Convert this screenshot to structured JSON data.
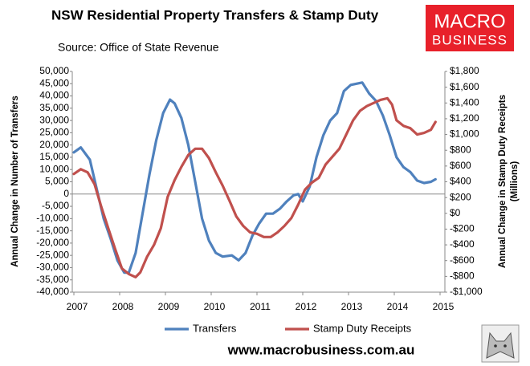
{
  "chart_data": {
    "type": "line",
    "title": "NSW Residential Property Transfers & Stamp Duty",
    "subtitle": "Source: Office of State Revenue",
    "logo": {
      "line1": "MACRO",
      "line2": "BUSINESS"
    },
    "website": "www.macrobusiness.com.au",
    "ylabel": "Annual Change in Number of Transfers",
    "y2label": [
      "Annual Change in Stamp Duty Receipts",
      "(Millions)"
    ],
    "xlim": [
      2007,
      2015
    ],
    "xticks": [
      2007,
      2008,
      2009,
      2010,
      2011,
      2012,
      2013,
      2014,
      2015
    ],
    "ylim": [
      -40000,
      50000
    ],
    "yticks": [
      {
        "value": -40000,
        "label": "-40,000"
      },
      {
        "value": -35000,
        "label": "-35,000"
      },
      {
        "value": -30000,
        "label": "-30,000"
      },
      {
        "value": -25000,
        "label": "-25,000"
      },
      {
        "value": -20000,
        "label": "-20,000"
      },
      {
        "value": -15000,
        "label": "-15,000"
      },
      {
        "value": -10000,
        "label": "-10,000"
      },
      {
        "value": -5000,
        "label": "-5,000"
      },
      0,
      {
        "value": 5000,
        "label": "5,000"
      },
      {
        "value": 10000,
        "label": "10,000"
      },
      {
        "value": 15000,
        "label": "15,000"
      },
      {
        "value": 20000,
        "label": "20,000"
      },
      {
        "value": 25000,
        "label": "25,000"
      },
      {
        "value": 30000,
        "label": "30,000"
      },
      {
        "value": 35000,
        "label": "35,000"
      },
      {
        "value": 40000,
        "label": "40,000"
      },
      {
        "value": 45000,
        "label": "45,000"
      },
      {
        "value": 50000,
        "label": "50,000"
      }
    ],
    "y2lim": [
      -1000,
      1800
    ],
    "y2ticks": [
      {
        "value": -1000,
        "label": "-$1,000"
      },
      {
        "value": -800,
        "label": "-$800"
      },
      {
        "value": -600,
        "label": "-$600"
      },
      {
        "value": -400,
        "label": "-$400"
      },
      {
        "value": -200,
        "label": "-$200"
      },
      {
        "value": 0,
        "label": "$0"
      },
      {
        "value": 200,
        "label": "$200"
      },
      {
        "value": 400,
        "label": "$400"
      },
      {
        "value": 600,
        "label": "$600"
      },
      {
        "value": 800,
        "label": "$800"
      },
      {
        "value": 1000,
        "label": "$1,000"
      },
      {
        "value": 1200,
        "label": "$1,200"
      },
      {
        "value": 1400,
        "label": "$1,400"
      },
      {
        "value": 1600,
        "label": "$1,600"
      },
      {
        "value": 1800,
        "label": "$1,800"
      }
    ],
    "zero_line": true,
    "series": [
      {
        "name": "Transfers",
        "color": "#4f81bd",
        "x": [
          2007.0,
          2007.15,
          2007.35,
          2007.5,
          2007.65,
          2007.8,
          2007.95,
          2008.1,
          2008.2,
          2008.35,
          2008.5,
          2008.65,
          2008.8,
          2008.95,
          2009.1,
          2009.2,
          2009.35,
          2009.5,
          2009.65,
          2009.8,
          2009.95,
          2010.1,
          2010.25,
          2010.45,
          2010.6,
          2010.75,
          2010.9,
          2011.05,
          2011.2,
          2011.35,
          2011.5,
          2011.65,
          2011.8,
          2011.9,
          2012.0,
          2012.15,
          2012.3,
          2012.45,
          2012.6,
          2012.75,
          2012.9,
          2013.05,
          2013.3,
          2013.45,
          2013.6,
          2013.75,
          2013.9,
          2014.05,
          2014.2,
          2014.35,
          2014.5,
          2014.65,
          2014.8,
          2014.9
        ],
        "values": [
          17000,
          19000,
          14000,
          2000,
          -10000,
          -18000,
          -27000,
          -32000,
          -32000,
          -24000,
          -8000,
          8000,
          22000,
          33000,
          38500,
          37000,
          31000,
          20000,
          5000,
          -10000,
          -19000,
          -24000,
          -25500,
          -25000,
          -27000,
          -24000,
          -17000,
          -12000,
          -8000,
          -8000,
          -6000,
          -3000,
          -500,
          0,
          -3000,
          3000,
          15000,
          24000,
          30000,
          33000,
          42000,
          44500,
          45500,
          41000,
          38000,
          32000,
          24000,
          15000,
          11000,
          9000,
          5500,
          4500,
          5000,
          6000
        ]
      },
      {
        "name": "Stamp Duty Receipts",
        "color": "#c0504d",
        "axis": "y2",
        "x": [
          2007.0,
          2007.15,
          2007.3,
          2007.45,
          2007.6,
          2007.75,
          2007.9,
          2008.05,
          2008.2,
          2008.35,
          2008.45,
          2008.6,
          2008.75,
          2008.9,
          2009.05,
          2009.2,
          2009.35,
          2009.5,
          2009.65,
          2009.8,
          2009.95,
          2010.1,
          2010.25,
          2010.4,
          2010.55,
          2010.7,
          2010.85,
          2011.0,
          2011.15,
          2011.3,
          2011.45,
          2011.6,
          2011.75,
          2011.9,
          2012.05,
          2012.2,
          2012.35,
          2012.5,
          2012.65,
          2012.8,
          2012.95,
          2013.1,
          2013.25,
          2013.4,
          2013.55,
          2013.7,
          2013.85,
          2013.95,
          2014.05,
          2014.2,
          2014.35,
          2014.5,
          2014.65,
          2014.8,
          2014.9
        ],
        "values": [
          500,
          560,
          520,
          370,
          80,
          -190,
          -450,
          -700,
          -770,
          -810,
          -750,
          -550,
          -400,
          -190,
          210,
          420,
          590,
          740,
          820,
          820,
          700,
          520,
          350,
          160,
          -40,
          -160,
          -240,
          -260,
          -300,
          -300,
          -240,
          -160,
          -60,
          110,
          300,
          390,
          450,
          620,
          720,
          820,
          1000,
          1180,
          1300,
          1360,
          1400,
          1440,
          1460,
          1380,
          1180,
          1110,
          1080,
          1000,
          1020,
          1060,
          1160
        ]
      }
    ]
  }
}
